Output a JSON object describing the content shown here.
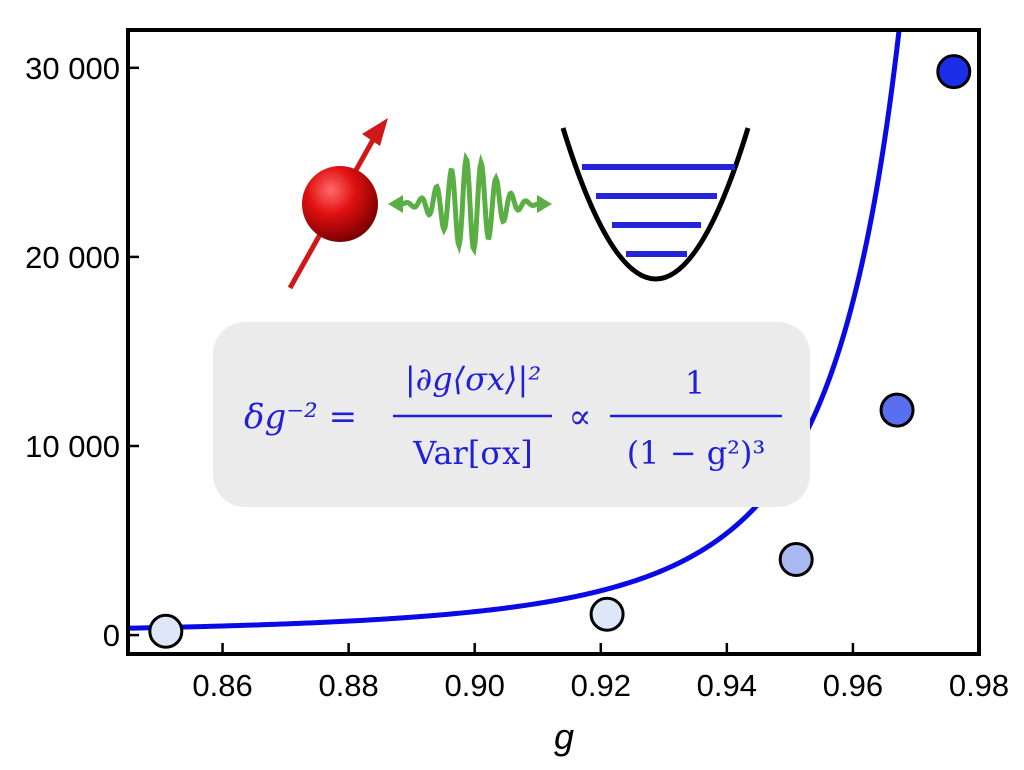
{
  "chart_data": {
    "type": "scatter",
    "xlabel": "g",
    "ylabel": "",
    "xlim": [
      0.845,
      0.98
    ],
    "ylim": [
      -1000,
      32000
    ],
    "x_ticks": [
      0.86,
      0.88,
      0.9,
      0.92,
      0.94,
      0.96,
      0.98
    ],
    "x_tick_labels": [
      "0.86",
      "0.88",
      "0.90",
      "0.92",
      "0.94",
      "0.96",
      "0.98"
    ],
    "y_ticks": [
      0,
      10000,
      20000,
      30000
    ],
    "y_tick_labels": [
      "0",
      "10 000",
      "20 000",
      "30 000"
    ],
    "grid": false,
    "points": [
      {
        "x": 0.851,
        "y": 200,
        "color": "#dde7f8"
      },
      {
        "x": 0.921,
        "y": 1100,
        "color": "#dde7f8"
      },
      {
        "x": 0.951,
        "y": 4000,
        "color": "#aab8f2"
      },
      {
        "x": 0.967,
        "y": 11900,
        "color": "#5a6ef0"
      },
      {
        "x": 0.976,
        "y": 29800,
        "color": "#1a2ee8"
      }
    ],
    "curve": {
      "formula": "A/(1-g^2)^3",
      "A": 8.5,
      "color": "#0a0ae6"
    },
    "annotation": {
      "lhs": "δg⁻² =",
      "numerator": "|∂g⟨σx⟩|²",
      "denominator": "Var[σx]",
      "relation": "∝",
      "rhs_numerator": "1",
      "rhs_denominator": "(1 − g²)³"
    }
  }
}
